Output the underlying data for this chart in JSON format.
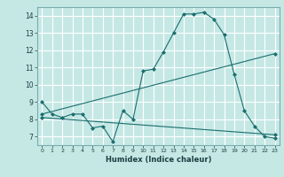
{
  "background_color": "#c5e8e5",
  "grid_color": "#ffffff",
  "line_color": "#1a6e6e",
  "xlabel": "Humidex (Indice chaleur)",
  "xlim": [
    -0.5,
    23.5
  ],
  "ylim": [
    6.5,
    14.5
  ],
  "yticks": [
    7,
    8,
    9,
    10,
    11,
    12,
    13,
    14
  ],
  "xticks": [
    0,
    1,
    2,
    3,
    4,
    5,
    6,
    7,
    8,
    9,
    10,
    11,
    12,
    13,
    14,
    15,
    16,
    17,
    18,
    19,
    20,
    21,
    22,
    23
  ],
  "line1_x": [
    0,
    1,
    2,
    3,
    4,
    5,
    6,
    7,
    8,
    9,
    10,
    11,
    12,
    13,
    14,
    15,
    16,
    17,
    18,
    19,
    20,
    21,
    22,
    23
  ],
  "line1_y": [
    9.0,
    8.3,
    8.1,
    8.3,
    8.3,
    7.5,
    7.6,
    6.7,
    8.5,
    8.0,
    10.8,
    10.9,
    11.9,
    13.0,
    14.1,
    14.1,
    14.2,
    13.8,
    12.9,
    10.6,
    8.5,
    7.6,
    7.0,
    6.9
  ],
  "line2_x": [
    0,
    23
  ],
  "line2_y": [
    8.3,
    11.8
  ],
  "line3_x": [
    0,
    23
  ],
  "line3_y": [
    8.1,
    7.1
  ]
}
